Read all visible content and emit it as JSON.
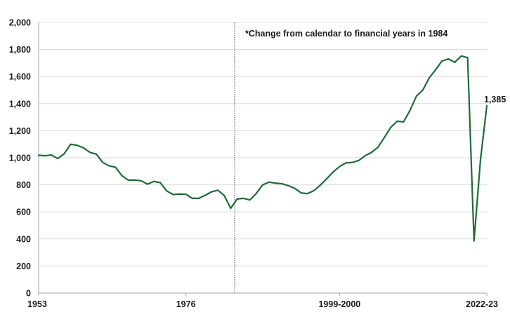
{
  "chart_data": {
    "type": "line",
    "title": "",
    "xlabel": "",
    "ylabel": "",
    "ylim": [
      0,
      2000
    ],
    "yticks": [
      "0",
      "200",
      "400",
      "600",
      "800",
      "1,000",
      "1,200",
      "1,400",
      "1,600",
      "1,800",
      "2,000"
    ],
    "xtick_labels": [
      "1953",
      "1976",
      "1999-2000",
      "2022-23"
    ],
    "grid": true,
    "colors": {
      "line": "#1f6b35",
      "grid": "#d9d9d9",
      "axis": "#a6a6a6",
      "marker_line": "#404040"
    },
    "annotation": "*Change from calendar to financial years in 1984",
    "divider_after_period": "1984",
    "end_label": "1,385",
    "periods": [
      "1953",
      "1954",
      "1955",
      "1956",
      "1957",
      "1958",
      "1959",
      "1960",
      "1961",
      "1962",
      "1963",
      "1964",
      "1965",
      "1966",
      "1967",
      "1968",
      "1969",
      "1970",
      "1971",
      "1972",
      "1973",
      "1974",
      "1975",
      "1976",
      "1977",
      "1978",
      "1979",
      "1980",
      "1981",
      "1982",
      "1983",
      "1984",
      "1984-85",
      "1985-86",
      "1986-87",
      "1987-88",
      "1988-89",
      "1989-90",
      "1990-91",
      "1991-92",
      "1992-93",
      "1993-94",
      "1994-95",
      "1995-96",
      "1996-97",
      "1997-98",
      "1998-99",
      "1999-2000",
      "2000-01",
      "2001-02",
      "2002-03",
      "2003-04",
      "2004-05",
      "2005-06",
      "2006-07",
      "2007-08",
      "2008-09",
      "2009-10",
      "2010-11",
      "2011-12",
      "2012-13",
      "2013-14",
      "2014-15",
      "2015-16",
      "2016-17",
      "2017-18",
      "2018-19",
      "2019-20",
      "2020-21",
      "2021-22",
      "2022-23"
    ],
    "values": [
      1018,
      1015,
      1020,
      994,
      1030,
      1100,
      1092,
      1073,
      1040,
      1027,
      966,
      940,
      930,
      868,
      835,
      835,
      830,
      805,
      825,
      816,
      755,
      728,
      732,
      730,
      700,
      700,
      722,
      748,
      760,
      720,
      626,
      695,
      700,
      688,
      737,
      800,
      820,
      812,
      808,
      794,
      774,
      740,
      735,
      757,
      798,
      845,
      895,
      935,
      962,
      965,
      980,
      1015,
      1040,
      1078,
      1150,
      1225,
      1270,
      1265,
      1350,
      1455,
      1500,
      1590,
      1650,
      1715,
      1730,
      1705,
      1752,
      1740,
      385,
      980,
      1385
    ]
  }
}
